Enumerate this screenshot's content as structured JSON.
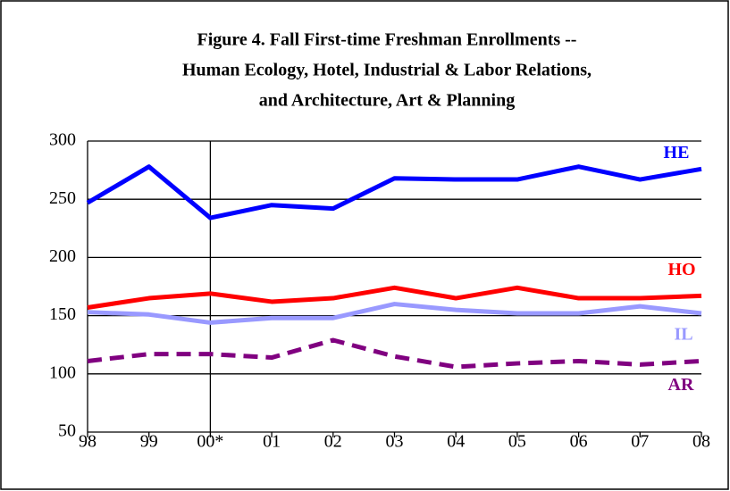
{
  "chart_data": {
    "type": "line",
    "title": [
      "Figure 4. Fall First-time Freshman Enrollments --",
      "Human Ecology, Hotel, Industrial & Labor Relations,",
      "and Architecture, Art & Planning"
    ],
    "categories": [
      "98",
      "99",
      "00*",
      "01",
      "02",
      "03",
      "04",
      "05",
      "06",
      "07",
      "08"
    ],
    "series": [
      {
        "name": "HE",
        "color": "#0000ff",
        "values": [
          247,
          278,
          234,
          245,
          242,
          268,
          267,
          267,
          278,
          267,
          276
        ]
      },
      {
        "name": "HO",
        "color": "#ff0000",
        "values": [
          157,
          165,
          169,
          162,
          165,
          174,
          165,
          174,
          165,
          165,
          167
        ]
      },
      {
        "name": "IL",
        "color": "#9999ff",
        "values": [
          153,
          151,
          144,
          148,
          148,
          160,
          155,
          152,
          152,
          158,
          152
        ]
      },
      {
        "name": "AR",
        "color": "#800080",
        "dashed": true,
        "values": [
          111,
          117,
          117,
          114,
          129,
          115,
          106,
          109,
          111,
          108,
          111
        ]
      }
    ],
    "ylim": [
      50,
      300
    ],
    "yticks": [
      50,
      100,
      150,
      200,
      250,
      300
    ],
    "grid": true
  }
}
